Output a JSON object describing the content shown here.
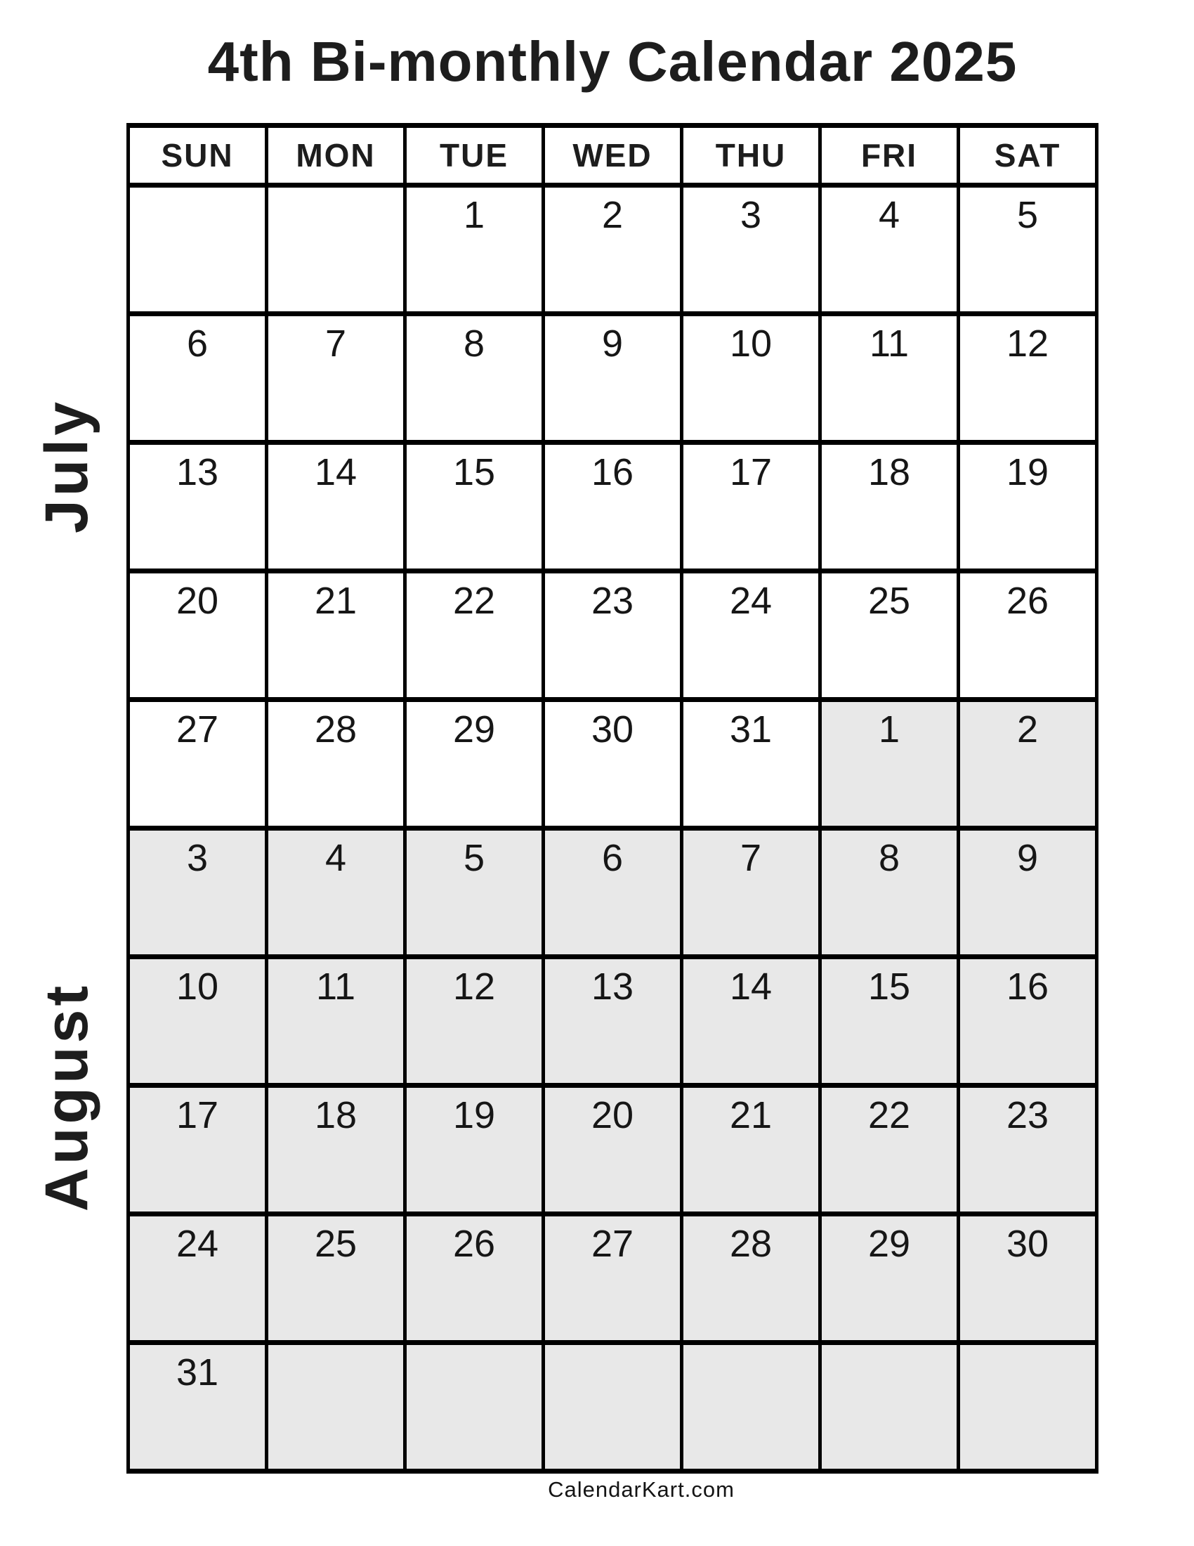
{
  "title": "4th Bi-monthly Calendar 2025",
  "months": {
    "first": "July",
    "second": "August"
  },
  "weekdays": [
    "SUN",
    "MON",
    "TUE",
    "WED",
    "THU",
    "FRI",
    "SAT"
  ],
  "weeks": [
    [
      {
        "d": "",
        "g": false
      },
      {
        "d": "",
        "g": false
      },
      {
        "d": "1",
        "g": false
      },
      {
        "d": "2",
        "g": false
      },
      {
        "d": "3",
        "g": false
      },
      {
        "d": "4",
        "g": false
      },
      {
        "d": "5",
        "g": false
      }
    ],
    [
      {
        "d": "6",
        "g": false
      },
      {
        "d": "7",
        "g": false
      },
      {
        "d": "8",
        "g": false
      },
      {
        "d": "9",
        "g": false
      },
      {
        "d": "10",
        "g": false
      },
      {
        "d": "11",
        "g": false
      },
      {
        "d": "12",
        "g": false
      }
    ],
    [
      {
        "d": "13",
        "g": false
      },
      {
        "d": "14",
        "g": false
      },
      {
        "d": "15",
        "g": false
      },
      {
        "d": "16",
        "g": false
      },
      {
        "d": "17",
        "g": false
      },
      {
        "d": "18",
        "g": false
      },
      {
        "d": "19",
        "g": false
      }
    ],
    [
      {
        "d": "20",
        "g": false
      },
      {
        "d": "21",
        "g": false
      },
      {
        "d": "22",
        "g": false
      },
      {
        "d": "23",
        "g": false
      },
      {
        "d": "24",
        "g": false
      },
      {
        "d": "25",
        "g": false
      },
      {
        "d": "26",
        "g": false
      }
    ],
    [
      {
        "d": "27",
        "g": false
      },
      {
        "d": "28",
        "g": false
      },
      {
        "d": "29",
        "g": false
      },
      {
        "d": "30",
        "g": false
      },
      {
        "d": "31",
        "g": false
      },
      {
        "d": "1",
        "g": true
      },
      {
        "d": "2",
        "g": true
      }
    ],
    [
      {
        "d": "3",
        "g": true
      },
      {
        "d": "4",
        "g": true
      },
      {
        "d": "5",
        "g": true
      },
      {
        "d": "6",
        "g": true
      },
      {
        "d": "7",
        "g": true
      },
      {
        "d": "8",
        "g": true
      },
      {
        "d": "9",
        "g": true
      }
    ],
    [
      {
        "d": "10",
        "g": true
      },
      {
        "d": "11",
        "g": true
      },
      {
        "d": "12",
        "g": true
      },
      {
        "d": "13",
        "g": true
      },
      {
        "d": "14",
        "g": true
      },
      {
        "d": "15",
        "g": true
      },
      {
        "d": "16",
        "g": true
      }
    ],
    [
      {
        "d": "17",
        "g": true
      },
      {
        "d": "18",
        "g": true
      },
      {
        "d": "19",
        "g": true
      },
      {
        "d": "20",
        "g": true
      },
      {
        "d": "21",
        "g": true
      },
      {
        "d": "22",
        "g": true
      },
      {
        "d": "23",
        "g": true
      }
    ],
    [
      {
        "d": "24",
        "g": true
      },
      {
        "d": "25",
        "g": true
      },
      {
        "d": "26",
        "g": true
      },
      {
        "d": "27",
        "g": true
      },
      {
        "d": "28",
        "g": true
      },
      {
        "d": "29",
        "g": true
      },
      {
        "d": "30",
        "g": true
      }
    ],
    [
      {
        "d": "31",
        "g": true
      },
      {
        "d": "",
        "g": true
      },
      {
        "d": "",
        "g": true
      },
      {
        "d": "",
        "g": true
      },
      {
        "d": "",
        "g": true
      },
      {
        "d": "",
        "g": true
      },
      {
        "d": "",
        "g": true
      }
    ]
  ],
  "footer": "CalendarKart.com",
  "colors": {
    "gray_cell": "#e8e8e8",
    "border": "#000000",
    "text": "#1d1d1d"
  }
}
